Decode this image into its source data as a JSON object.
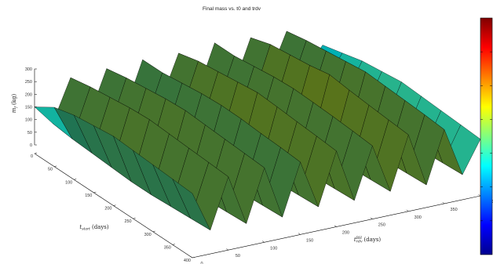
{
  "chart_data": {
    "type": "surface",
    "title": "Final mass vs. t0 and trdv",
    "zlabel": {
      "main": "m",
      "sub": "f",
      "unit": "(kg)"
    },
    "ylabel": {
      "main": "t",
      "sub": "start",
      "unit": "(days)"
    },
    "xlabel": {
      "main": "t",
      "sub": "rdv",
      "sup": "BH",
      "unit": "(days)"
    },
    "z_ticks": [
      "0",
      "50",
      "100",
      "150",
      "200",
      "250",
      "300"
    ],
    "start_ticks": [
      "0",
      "50",
      "100",
      "150",
      "200",
      "250",
      "300",
      "350",
      "400"
    ],
    "rdv_ticks": [
      "0",
      "50",
      "100",
      "150",
      "200",
      "250",
      "300",
      "350",
      "400"
    ],
    "zlim": [
      0,
      300
    ],
    "start_lim": [
      0,
      400
    ],
    "rdv_lim": [
      0,
      400
    ],
    "colormap": "jet",
    "grid": false,
    "surface_profile": {
      "start_values": [
        0,
        50,
        100,
        150,
        200,
        250,
        300,
        350,
        400
      ],
      "rdv_values": [
        0,
        25,
        50,
        75,
        100,
        125,
        150,
        175,
        200,
        225,
        250,
        275,
        300,
        325,
        350,
        375,
        400
      ],
      "mass_rows": [
        [
          150,
          70,
          235,
          60,
          240,
          55,
          245,
          65,
          240,
          60,
          250,
          55,
          240,
          70,
          235,
          60,
          150
        ],
        [
          200,
          60,
          250,
          55,
          255,
          50,
          245,
          60,
          260,
          55,
          250,
          60,
          265,
          55,
          250,
          65,
          170
        ],
        [
          220,
          55,
          260,
          50,
          265,
          45,
          255,
          55,
          270,
          50,
          260,
          55,
          275,
          50,
          260,
          60,
          190
        ],
        [
          230,
          50,
          270,
          45,
          275,
          40,
          265,
          50,
          280,
          45,
          270,
          50,
          285,
          45,
          270,
          55,
          200
        ],
        [
          240,
          45,
          275,
          40,
          280,
          35,
          270,
          45,
          290,
          40,
          275,
          45,
          300,
          40,
          280,
          50,
          210
        ],
        [
          235,
          45,
          270,
          40,
          275,
          35,
          268,
          45,
          285,
          40,
          272,
          45,
          290,
          40,
          275,
          50,
          205
        ],
        [
          230,
          50,
          265,
          45,
          270,
          40,
          262,
          50,
          278,
          45,
          268,
          50,
          282,
          45,
          270,
          55,
          200
        ],
        [
          225,
          55,
          260,
          50,
          265,
          45,
          258,
          55,
          272,
          50,
          262,
          55,
          275,
          50,
          265,
          60,
          195
        ],
        [
          220,
          60,
          255,
          55,
          260,
          50,
          252,
          60,
          265,
          55,
          255,
          60,
          268,
          55,
          258,
          65,
          190
        ]
      ]
    }
  }
}
